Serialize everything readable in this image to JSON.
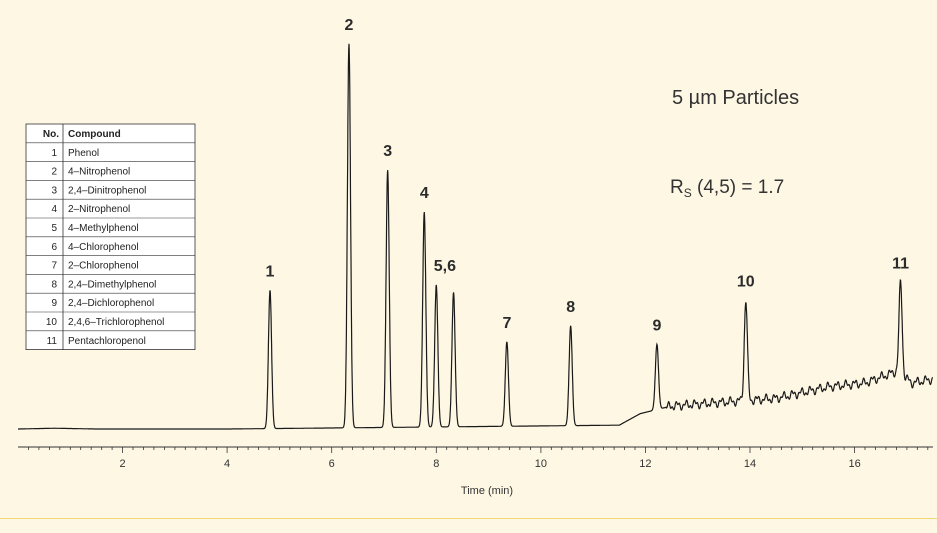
{
  "colors": {
    "background": "#fdf7e4",
    "trace": "#1a1a1a",
    "axis": "#333333",
    "accent_rule": "#f2d77a"
  },
  "annotations": {
    "particles": "5 µm Particles",
    "resolution_prefix": "R",
    "resolution_sub": "S",
    "resolution_rest": " (4,5) = 1.7"
  },
  "legend": {
    "headers": [
      "No.",
      "Compound"
    ],
    "rows": [
      [
        "1",
        "Phenol"
      ],
      [
        "2",
        "4–Nitrophenol"
      ],
      [
        "3",
        "2,4–Dinitrophenol"
      ],
      [
        "4",
        "2–Nitrophenol"
      ],
      [
        "5",
        "4–Methylphenol"
      ],
      [
        "6",
        "4–Chlorophenol"
      ],
      [
        "7",
        "2–Chlorophenol"
      ],
      [
        "8",
        "2,4–Dimethylphenol"
      ],
      [
        "9",
        "2,4–Dichlorophenol"
      ],
      [
        "10",
        "2,4,6–Trichlorophenol"
      ],
      [
        "11",
        "Pentachloropenol"
      ]
    ]
  },
  "chart_data": {
    "type": "line",
    "xlabel": "Time (min)",
    "ylabel": "",
    "xlim": [
      0,
      17.5
    ],
    "ylim": [
      0,
      100
    ],
    "x_ticks": [
      2,
      4,
      6,
      8,
      10,
      12,
      14,
      16
    ],
    "peaks": [
      {
        "label": "1",
        "x": 4.82,
        "height": 36
      },
      {
        "label": "2",
        "x": 6.33,
        "height": 100
      },
      {
        "label": "3",
        "x": 7.07,
        "height": 67
      },
      {
        "label": "4",
        "x": 7.77,
        "height": 56
      },
      {
        "label": "5,6",
        "x": 8.0,
        "height": 37
      },
      {
        "label": "",
        "x": 8.33,
        "height": 35
      },
      {
        "label": "7",
        "x": 9.35,
        "height": 22
      },
      {
        "label": "8",
        "x": 10.57,
        "height": 26
      },
      {
        "label": "9",
        "x": 12.22,
        "height": 17
      },
      {
        "label": "10",
        "x": 13.92,
        "height": 26
      },
      {
        "label": "11",
        "x": 16.88,
        "height": 24
      }
    ],
    "baseline": [
      [
        0,
        0
      ],
      [
        0.7,
        0.2
      ],
      [
        1.5,
        0
      ],
      [
        4.0,
        0
      ],
      [
        11.5,
        1
      ],
      [
        11.9,
        4
      ],
      [
        12.5,
        6
      ],
      [
        13.5,
        7
      ],
      [
        14.5,
        8
      ],
      [
        15.5,
        11
      ],
      [
        16.2,
        12
      ],
      [
        16.8,
        15
      ],
      [
        17.1,
        12
      ],
      [
        17.5,
        13
      ]
    ]
  }
}
